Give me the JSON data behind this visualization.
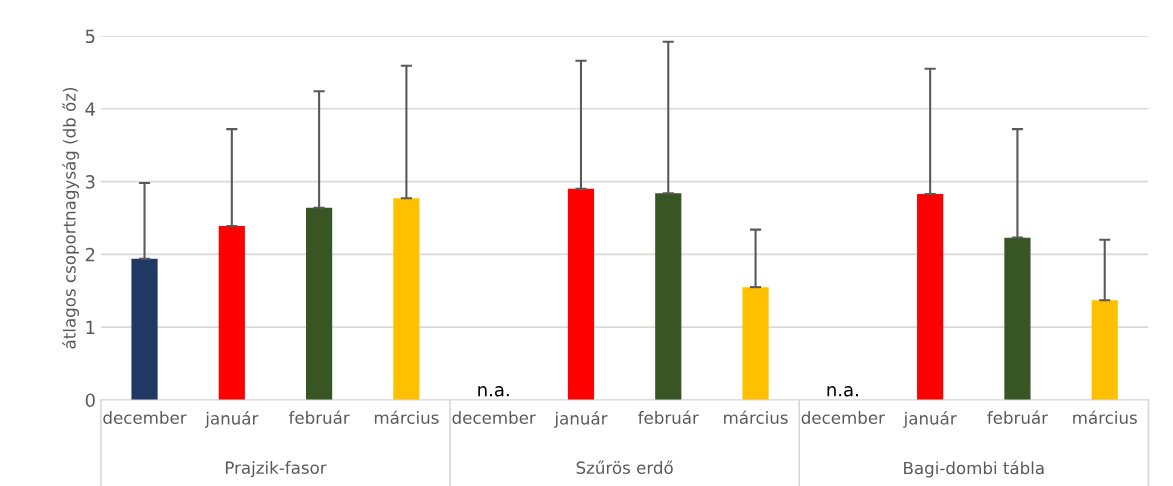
{
  "chart_data": {
    "type": "bar",
    "ylabel": "átlagos csoportnagyság (db őz)",
    "categories": [
      "december",
      "január",
      "február",
      "március",
      "december",
      "január",
      "február",
      "március",
      "december",
      "január",
      "február",
      "március"
    ],
    "values": [
      1.94,
      2.39,
      2.64,
      2.77,
      null,
      2.9,
      2.84,
      1.55,
      null,
      2.83,
      2.23,
      1.37
    ],
    "value_labels": [
      null,
      null,
      null,
      null,
      "n.a.",
      null,
      null,
      null,
      "n.a.",
      null,
      null,
      null
    ],
    "errors": [
      [
        1.94,
        2.98
      ],
      [
        2.39,
        3.72
      ],
      [
        2.64,
        4.24
      ],
      [
        2.77,
        4.59
      ],
      null,
      [
        2.9,
        4.66
      ],
      [
        2.84,
        4.92
      ],
      [
        1.55,
        2.34
      ],
      null,
      [
        2.83,
        4.55
      ],
      [
        2.23,
        3.72
      ],
      [
        1.37,
        2.2
      ]
    ],
    "colors": [
      "#203864",
      "#ff0000",
      "#375623",
      "#ffc000",
      "#203864",
      "#ff0000",
      "#375623",
      "#ffc000",
      "#203864",
      "#ff0000",
      "#375623",
      "#ffc000"
    ],
    "annotations": [
      "Prajzik-fasor",
      "Szűrös erdő",
      "Bagi-dombi tábla"
    ],
    "ylim": [
      0,
      5
    ],
    "yticks": [
      0,
      1,
      2,
      3,
      4,
      5
    ],
    "grid": "y"
  }
}
